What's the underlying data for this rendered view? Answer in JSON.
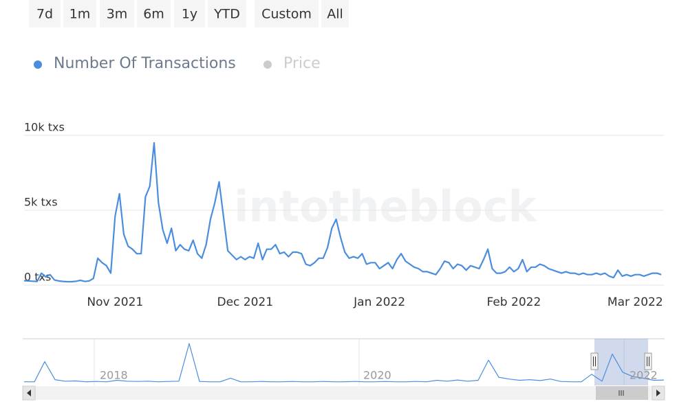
{
  "range_buttons": [
    "7d",
    "1m",
    "3m",
    "6m",
    "1y",
    "YTD",
    "Custom",
    "All"
  ],
  "chart_data": {
    "type": "line",
    "watermark": "intotheblock",
    "categories": [
      null,
      null,
      null,
      null,
      null,
      null,
      null,
      null,
      null,
      null,
      null,
      null,
      null,
      null,
      null,
      null,
      null,
      null,
      null,
      null,
      null,
      "Nov 2021",
      null,
      null,
      null,
      null,
      null,
      null,
      null,
      null,
      null,
      null,
      null,
      null,
      null,
      null,
      null,
      null,
      null,
      null,
      null,
      null,
      null,
      null,
      null,
      null,
      null,
      null,
      null,
      null,
      null,
      "Dec 2021",
      null,
      null,
      null,
      null,
      null,
      null,
      null,
      null,
      null,
      null,
      null,
      null,
      null,
      null,
      null,
      null,
      null,
      null,
      null,
      null,
      null,
      null,
      null,
      null,
      null,
      null,
      null,
      null,
      null,
      null,
      "Jan 2022",
      null,
      null,
      null,
      null,
      null,
      null,
      null,
      null,
      null,
      null,
      null,
      null,
      null,
      null,
      null,
      null,
      null,
      null,
      null,
      null,
      null,
      null,
      null,
      null,
      null,
      null,
      null,
      null,
      null,
      null,
      "Feb 2022",
      null,
      null,
      null,
      null,
      null,
      null,
      null,
      null,
      null,
      null,
      null,
      null,
      null,
      null,
      null,
      null,
      null,
      null,
      null,
      null,
      null,
      null,
      null,
      null,
      null,
      null,
      null,
      "Mar 2022",
      null,
      null,
      null,
      null,
      null,
      null
    ],
    "series": [
      {
        "name": "Number Of Transactions",
        "color": "#4a8ddf",
        "values": [
          300,
          280,
          260,
          250,
          800,
          550,
          700,
          350,
          280,
          250,
          230,
          230,
          260,
          320,
          250,
          280,
          450,
          1800,
          1500,
          1300,
          800,
          4600,
          6100,
          3400,
          2600,
          2400,
          2100,
          2100,
          5900,
          6600,
          9500,
          5500,
          3700,
          2800,
          3800,
          2300,
          2700,
          2400,
          2300,
          3000,
          2100,
          1800,
          2700,
          4400,
          5500,
          6900,
          4600,
          2300,
          2000,
          1700,
          1900,
          1700,
          1900,
          1800,
          2800,
          1700,
          2400,
          2400,
          2700,
          2100,
          2200,
          1900,
          2200,
          2200,
          2100,
          1400,
          1300,
          1500,
          1800,
          1800,
          2500,
          3800,
          4400,
          3200,
          2200,
          1800,
          1900,
          1800,
          2100,
          1400,
          1500,
          1500,
          1100,
          1300,
          1500,
          1100,
          1700,
          2100,
          1600,
          1400,
          1200,
          1100,
          900,
          900,
          800,
          700,
          1100,
          1600,
          1500,
          1100,
          1400,
          1300,
          1000,
          1300,
          1200,
          1100,
          1700,
          2400,
          1100,
          800,
          800,
          900,
          1200,
          900,
          1100,
          1700,
          900,
          1200,
          1200,
          1400,
          1300,
          1100,
          1000,
          900,
          800,
          900,
          800,
          800,
          700,
          800,
          700,
          700,
          800,
          700,
          800,
          600,
          500,
          1000,
          600,
          700,
          600,
          700,
          700,
          600,
          700,
          800,
          800,
          700
        ]
      }
    ],
    "inactive_series": [
      {
        "name": "Price",
        "color": "#cccccc"
      }
    ],
    "ylim": [
      0,
      10000
    ],
    "yticks": [
      {
        "value": 0,
        "label": "0 txs"
      },
      {
        "value": 5000,
        "label": "5k txs"
      },
      {
        "value": 10000,
        "label": "10k txs"
      }
    ],
    "grid": true,
    "navigator": {
      "type": "line",
      "labels": [
        "2018",
        "2020",
        "2022"
      ],
      "values": [
        300,
        300,
        7000,
        1000,
        500,
        600,
        300,
        400,
        300,
        800,
        500,
        400,
        500,
        300,
        400,
        500,
        13000,
        400,
        300,
        300,
        1500,
        300,
        300,
        400,
        300,
        300,
        400,
        300,
        300,
        400,
        300,
        300,
        400,
        300,
        300,
        400,
        300,
        300,
        400,
        300,
        800,
        500,
        900,
        500,
        800,
        7500,
        1800,
        1200,
        800,
        1000,
        700,
        1200,
        400,
        300,
        300,
        2800,
        500,
        9500,
        3500,
        2000,
        1500,
        800,
        900
      ]
    }
  }
}
